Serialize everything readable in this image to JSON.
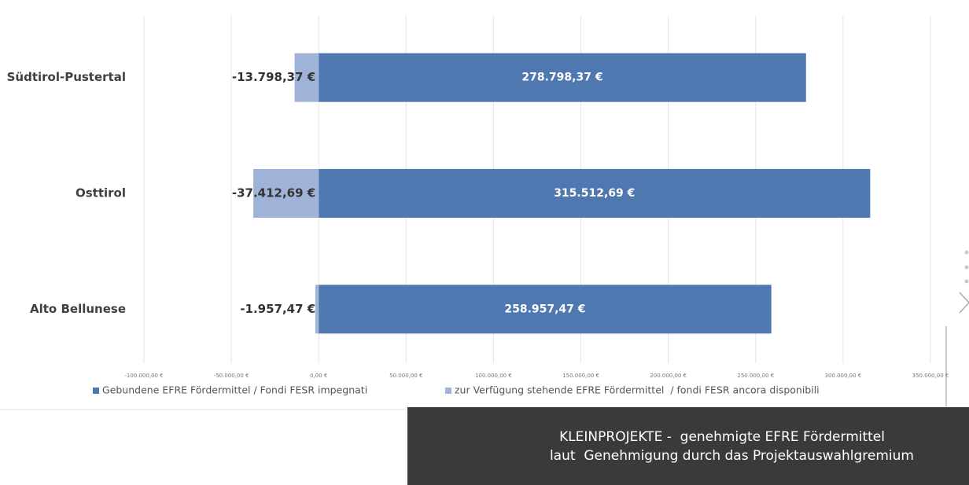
{
  "chart_data": {
    "type": "bar",
    "orientation": "horizontal",
    "categories": [
      "Südtirol-Pustertal",
      "Osttirol",
      "Alto Bellunese"
    ],
    "series": [
      {
        "name": "Gebundene EFRE Fördermittel / Fondi FESR impegnati",
        "color": "#4f78b0",
        "values": [
          278798.37,
          315512.69,
          258957.47
        ],
        "value_labels": [
          "278.798,37 €",
          "315.512,69 €",
          "258.957,47 €"
        ]
      },
      {
        "name": "zur Verfügung stehende EFRE Fördermittel  / fondi FESR ancora disponibili",
        "color": "#9fb3d8",
        "values": [
          -13798.37,
          -37412.69,
          -1957.47
        ],
        "value_labels": [
          "-13.798,37 €",
          "-37.412,69 €",
          "-1.957,47 €"
        ]
      }
    ],
    "xlim": [
      -100000,
      350000
    ],
    "xticks": [
      {
        "value": -100000,
        "label": "-100.000,00 €"
      },
      {
        "value": -50000,
        "label": "-50.000,00 €"
      },
      {
        "value": 0,
        "label": "0,00 €"
      },
      {
        "value": 50000,
        "label": "50.000,00 €"
      },
      {
        "value": 100000,
        "label": "100.000,00 €"
      },
      {
        "value": 150000,
        "label": "150.000,00 €"
      },
      {
        "value": 200000,
        "label": "200.000,00 €"
      },
      {
        "value": 250000,
        "label": "250.000,00 €"
      },
      {
        "value": 300000,
        "label": "300.000,00 €"
      },
      {
        "value": 350000,
        "label": "350.000,00 €"
      }
    ],
    "grid": true,
    "legend": "bottom"
  },
  "caption": {
    "lines": [
      "KLEINPROJEKTE -  genehmigte EFRE Fördermittel",
      "laut  Genehmigung durch das Projektauswahlgremium"
    ]
  }
}
